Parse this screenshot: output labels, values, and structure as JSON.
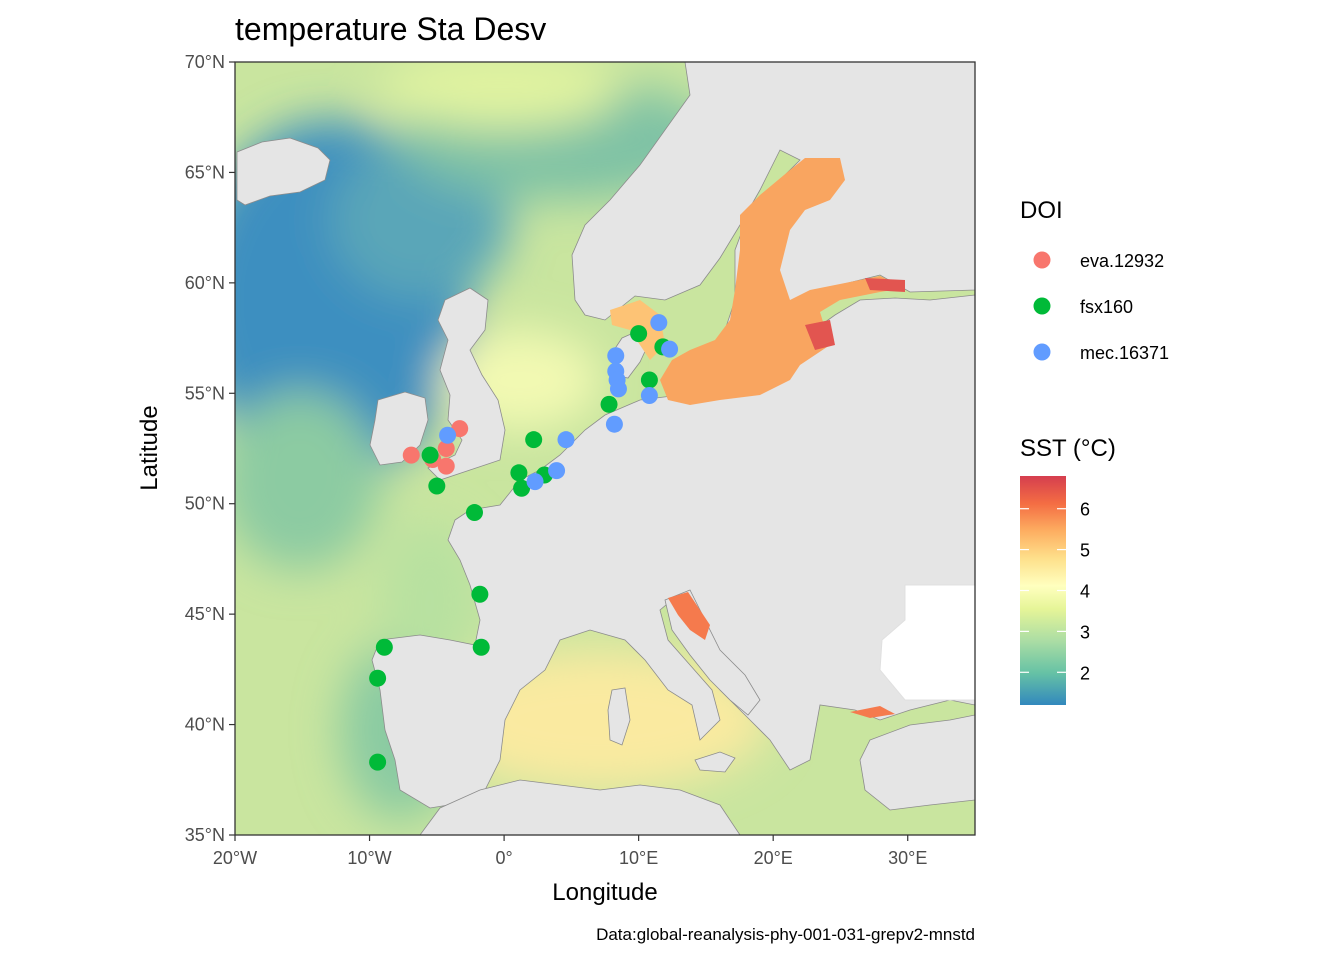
{
  "title": "temperature Sta Desv",
  "x_axis_label": "Longitude",
  "y_axis_label": "Latitude",
  "caption": "Data:global-reanalysis-phy-001-031-grepv2-mnstd",
  "legend_points": {
    "title": "DOI",
    "items": [
      {
        "label": "eva.12932",
        "color": "#F8766D"
      },
      {
        "label": "fsx160",
        "color": "#00BA38"
      },
      {
        "label": "mec.16371",
        "color": "#619CFF"
      }
    ]
  },
  "legend_fill": {
    "title": "SST (°C)",
    "range": [
      1.2,
      6.8
    ],
    "breaks": [
      {
        "value": 2,
        "label": "2"
      },
      {
        "value": 3,
        "label": "3"
      },
      {
        "value": 4,
        "label": "4"
      },
      {
        "value": 5,
        "label": "5"
      },
      {
        "value": 6,
        "label": "6"
      }
    ],
    "palette": [
      "#3288BD",
      "#66C2A5",
      "#ABDDA4",
      "#E6F598",
      "#FFFFBF",
      "#FEE08B",
      "#FDAE61",
      "#F46D43",
      "#D53E4F"
    ]
  },
  "colors": {
    "land": "#E5E5E5",
    "land_border": "#8C8C8C",
    "panel_border": "#333333"
  },
  "chart_data": {
    "type": "scatter",
    "xlim": [
      -20,
      35
    ],
    "ylim": [
      35,
      70
    ],
    "x_ticks": [
      {
        "value": -20,
        "label": "20°W"
      },
      {
        "value": -10,
        "label": "10°W"
      },
      {
        "value": 0,
        "label": "0°"
      },
      {
        "value": 10,
        "label": "10°E"
      },
      {
        "value": 20,
        "label": "20°E"
      },
      {
        "value": 30,
        "label": "30°E"
      }
    ],
    "y_ticks": [
      {
        "value": 35,
        "label": "35°N"
      },
      {
        "value": 40,
        "label": "40°N"
      },
      {
        "value": 45,
        "label": "45°N"
      },
      {
        "value": 50,
        "label": "50°N"
      },
      {
        "value": 55,
        "label": "55°N"
      },
      {
        "value": 60,
        "label": "60°N"
      },
      {
        "value": 65,
        "label": "65°N"
      },
      {
        "value": 70,
        "label": "70°N"
      }
    ],
    "grid": false,
    "legend_position": "right",
    "series": [
      {
        "name": "eva.12932",
        "color": "#F8766D",
        "points": [
          {
            "lon": -6.9,
            "lat": 52.2
          },
          {
            "lon": -5.3,
            "lat": 52.0
          },
          {
            "lon": -4.3,
            "lat": 52.5
          },
          {
            "lon": -4.3,
            "lat": 51.7
          },
          {
            "lon": -3.3,
            "lat": 53.4
          }
        ]
      },
      {
        "name": "fsx160",
        "color": "#00BA38",
        "points": [
          {
            "lon": -5.5,
            "lat": 52.2
          },
          {
            "lon": -5.0,
            "lat": 50.8
          },
          {
            "lon": -2.2,
            "lat": 49.6
          },
          {
            "lon": -1.8,
            "lat": 45.9
          },
          {
            "lon": -1.7,
            "lat": 43.5
          },
          {
            "lon": -8.9,
            "lat": 43.5
          },
          {
            "lon": -9.4,
            "lat": 42.1
          },
          {
            "lon": -9.4,
            "lat": 38.3
          },
          {
            "lon": 1.1,
            "lat": 51.4
          },
          {
            "lon": 1.3,
            "lat": 50.7
          },
          {
            "lon": 2.2,
            "lat": 52.9
          },
          {
            "lon": 3.0,
            "lat": 51.3
          },
          {
            "lon": 7.8,
            "lat": 54.5
          },
          {
            "lon": 10.0,
            "lat": 57.7
          },
          {
            "lon": 10.8,
            "lat": 55.6
          },
          {
            "lon": 11.8,
            "lat": 57.1
          }
        ]
      },
      {
        "name": "mec.16371",
        "color": "#619CFF",
        "points": [
          {
            "lon": -4.2,
            "lat": 53.1
          },
          {
            "lon": 2.3,
            "lat": 51.0
          },
          {
            "lon": 3.9,
            "lat": 51.5
          },
          {
            "lon": 4.6,
            "lat": 52.9
          },
          {
            "lon": 8.2,
            "lat": 53.6
          },
          {
            "lon": 8.3,
            "lat": 56.7
          },
          {
            "lon": 8.3,
            "lat": 56.0
          },
          {
            "lon": 8.4,
            "lat": 55.6
          },
          {
            "lon": 8.5,
            "lat": 55.2
          },
          {
            "lon": 10.8,
            "lat": 54.9
          },
          {
            "lon": 11.5,
            "lat": 58.2
          },
          {
            "lon": 12.3,
            "lat": 57.0
          }
        ]
      }
    ]
  }
}
